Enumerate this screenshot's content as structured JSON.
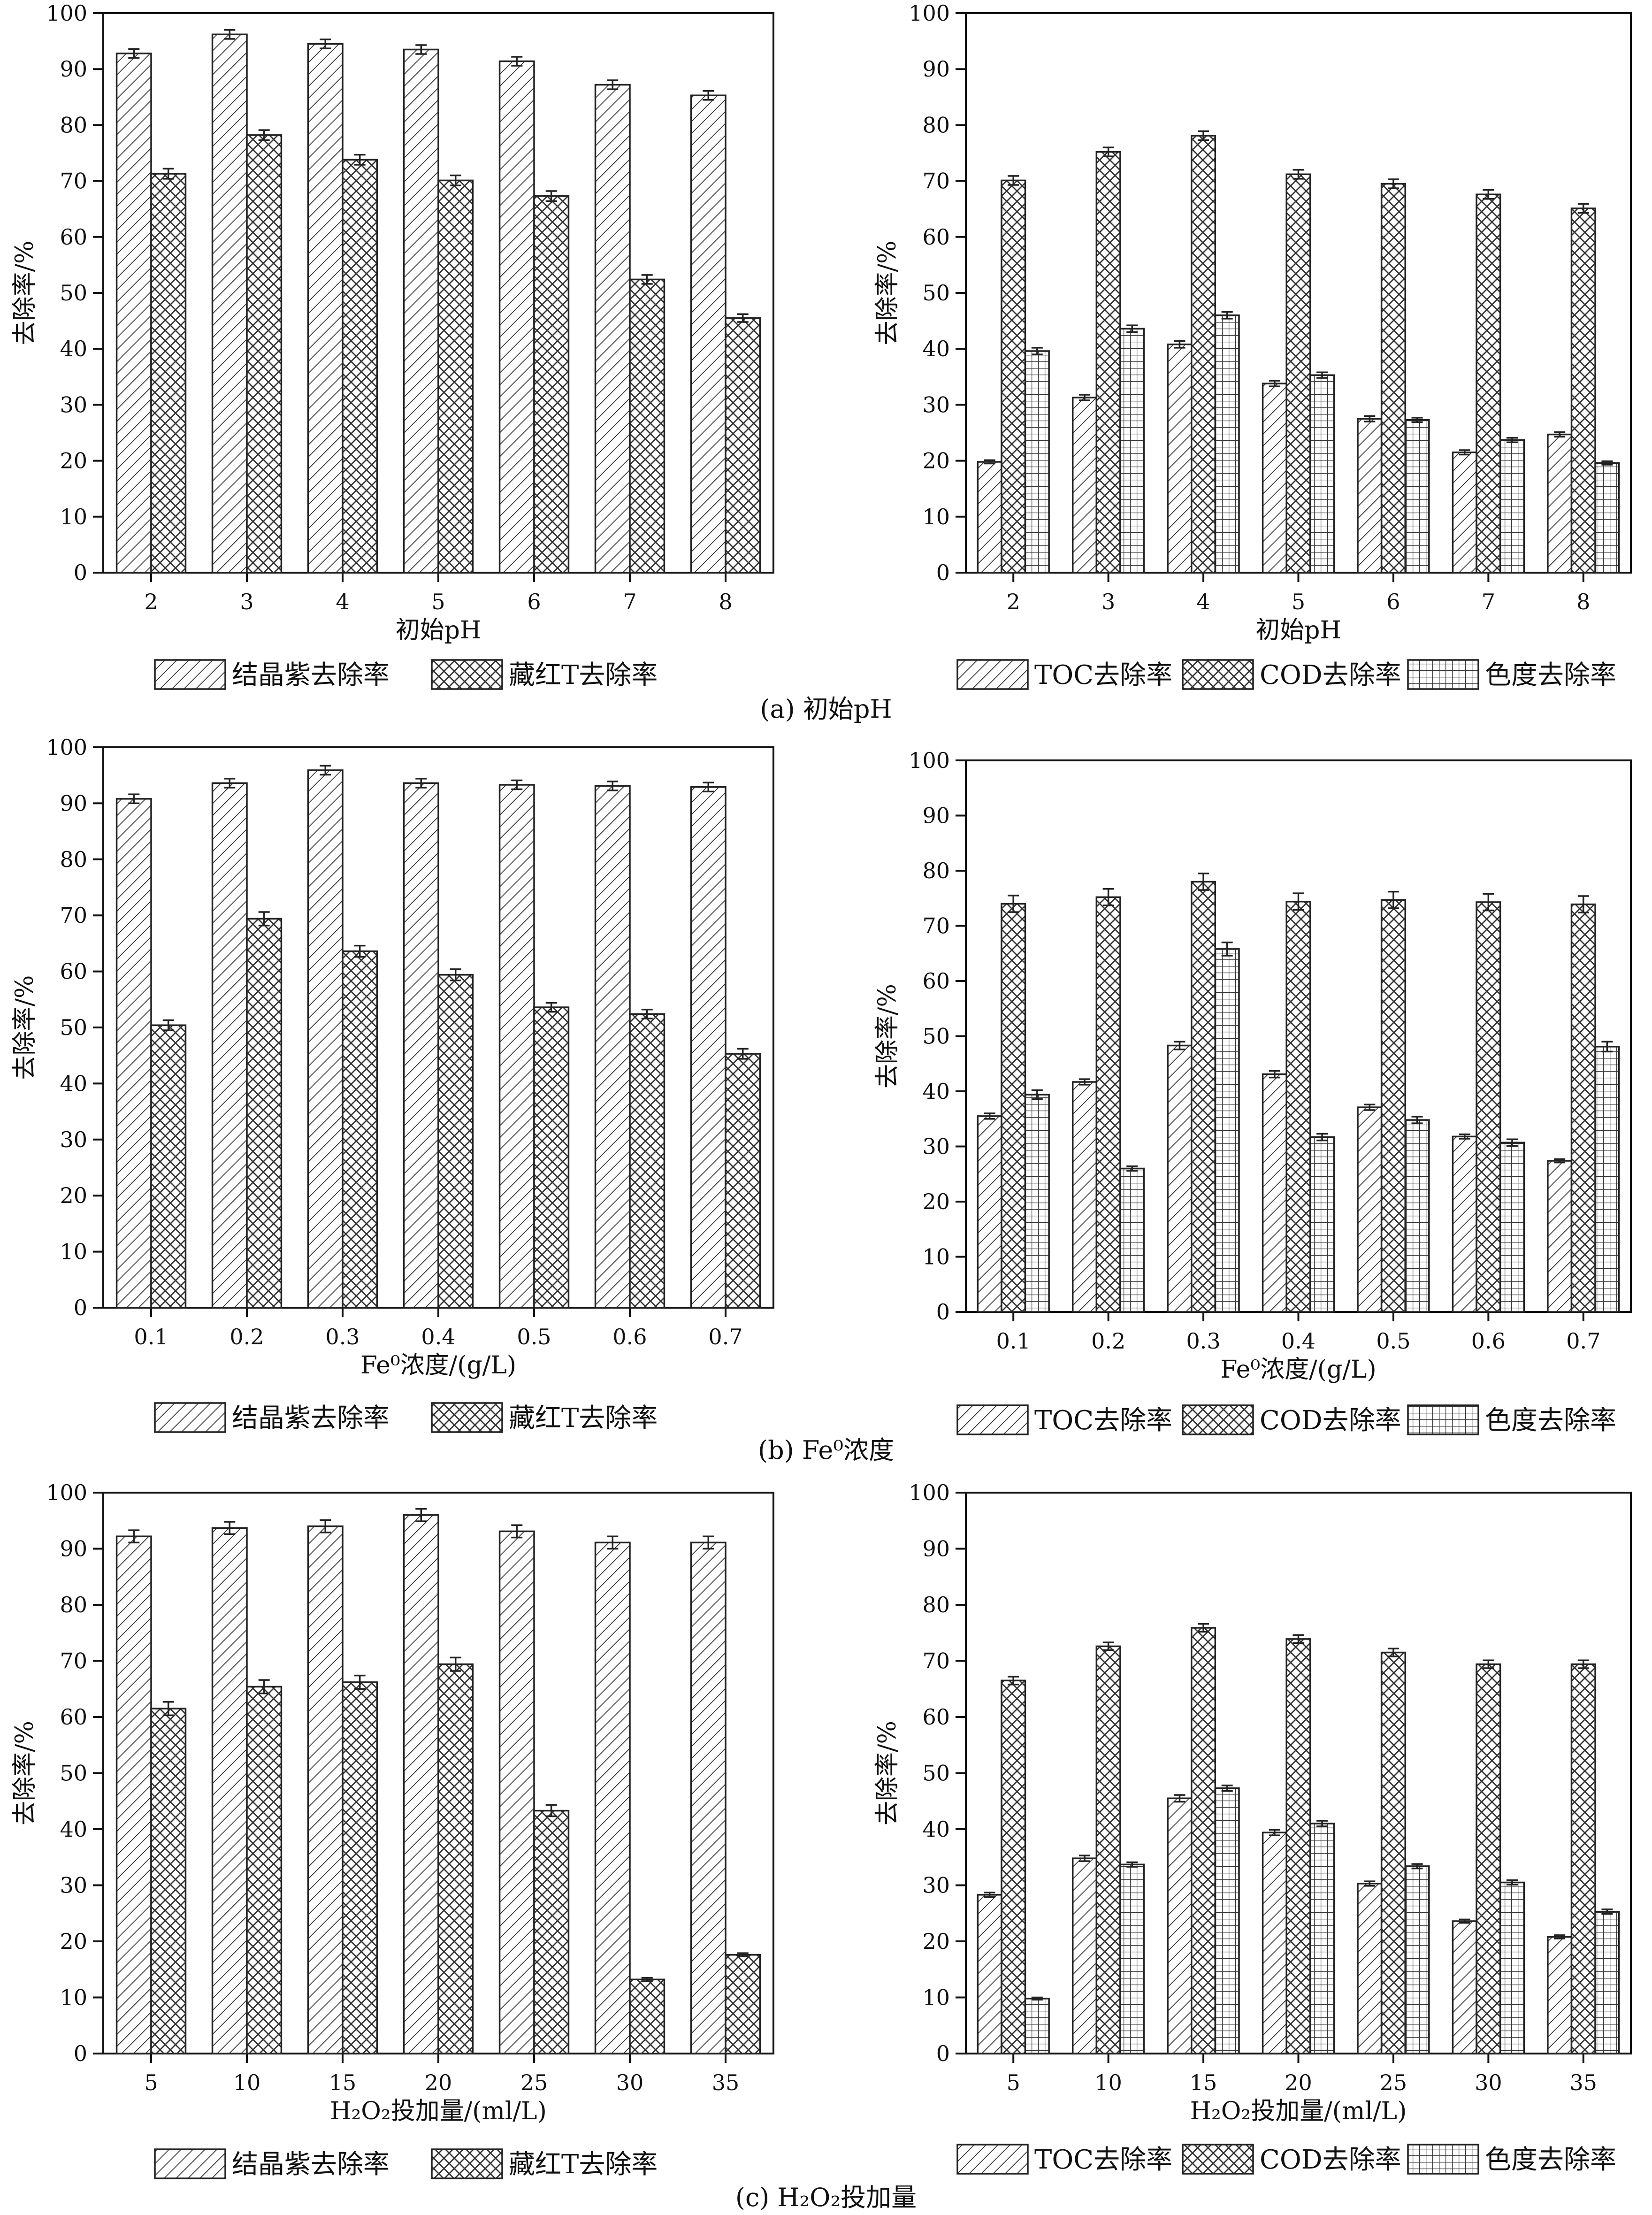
{
  "figure": {
    "captions": [
      {
        "id": "a",
        "text": "(a) 初始pH"
      },
      {
        "id": "b",
        "text": "(b) Fe⁰浓度"
      },
      {
        "id": "c",
        "text": "(c) H₂O₂投加量"
      }
    ]
  },
  "chart_data": [
    {
      "id": "a-left",
      "type": "bar",
      "categories": [
        "2",
        "3",
        "4",
        "5",
        "6",
        "7",
        "8"
      ],
      "xlabel": "初始pH",
      "ylabel": "去除率/%",
      "ylim": [
        0,
        100
      ],
      "yticks": [
        0,
        10,
        20,
        30,
        40,
        50,
        60,
        70,
        80,
        90,
        100
      ],
      "series": [
        {
          "name": "结晶紫去除率",
          "pattern": "diag",
          "values": [
            92.8,
            96.2,
            94.5,
            93.5,
            91.4,
            87.2,
            85.3
          ],
          "errors": [
            0.8,
            0.8,
            0.8,
            0.8,
            0.8,
            0.8,
            0.8
          ]
        },
        {
          "name": "藏红T去除率",
          "pattern": "cross",
          "values": [
            71.3,
            78.2,
            73.8,
            70.1,
            67.3,
            52.4,
            45.5
          ],
          "errors": [
            0.9,
            0.9,
            0.9,
            0.9,
            0.9,
            0.8,
            0.7
          ]
        }
      ]
    },
    {
      "id": "a-right",
      "type": "bar",
      "categories": [
        "2",
        "3",
        "4",
        "5",
        "6",
        "7",
        "8"
      ],
      "xlabel": "初始pH",
      "ylabel": "去除率/%",
      "ylim": [
        0,
        100
      ],
      "yticks": [
        0,
        10,
        20,
        30,
        40,
        50,
        60,
        70,
        80,
        90,
        100
      ],
      "series": [
        {
          "name": "TOC去除率",
          "pattern": "diag",
          "values": [
            19.8,
            31.3,
            40.8,
            33.8,
            27.5,
            21.5,
            24.7
          ],
          "errors": [
            0.3,
            0.5,
            0.6,
            0.5,
            0.5,
            0.4,
            0.4
          ]
        },
        {
          "name": "COD去除率",
          "pattern": "cross",
          "values": [
            70.1,
            75.2,
            78.1,
            71.2,
            69.5,
            67.6,
            65.1
          ],
          "errors": [
            0.8,
            0.8,
            0.8,
            0.8,
            0.8,
            0.8,
            0.8
          ]
        },
        {
          "name": "色度去除率",
          "pattern": "grid",
          "values": [
            39.6,
            43.6,
            46.0,
            35.3,
            27.3,
            23.7,
            19.6
          ],
          "errors": [
            0.6,
            0.6,
            0.6,
            0.5,
            0.4,
            0.4,
            0.3
          ]
        }
      ]
    },
    {
      "id": "b-left",
      "type": "bar",
      "categories": [
        "0.1",
        "0.2",
        "0.3",
        "0.4",
        "0.5",
        "0.6",
        "0.7"
      ],
      "xlabel": "Fe⁰浓度/(g/L)",
      "ylabel": "去除率/%",
      "ylim": [
        0,
        100
      ],
      "yticks": [
        0,
        10,
        20,
        30,
        40,
        50,
        60,
        70,
        80,
        90,
        100
      ],
      "series": [
        {
          "name": "结晶紫去除率",
          "pattern": "diag",
          "values": [
            90.8,
            93.6,
            95.9,
            93.6,
            93.3,
            93.1,
            92.9
          ],
          "errors": [
            0.8,
            0.8,
            0.8,
            0.8,
            0.8,
            0.8,
            0.8
          ]
        },
        {
          "name": "藏红T去除率",
          "pattern": "cross",
          "values": [
            50.4,
            69.4,
            63.6,
            59.4,
            53.6,
            52.4,
            45.3
          ],
          "errors": [
            0.9,
            1.2,
            1.0,
            1.0,
            0.8,
            0.8,
            0.9
          ]
        }
      ]
    },
    {
      "id": "b-right",
      "type": "bar",
      "categories": [
        "0.1",
        "0.2",
        "0.3",
        "0.4",
        "0.5",
        "0.6",
        "0.7"
      ],
      "xlabel": "Fe⁰浓度/(g/L)",
      "ylabel": "去除率/%",
      "ylim": [
        0,
        100
      ],
      "yticks": [
        0,
        10,
        20,
        30,
        40,
        50,
        60,
        70,
        80,
        90,
        100
      ],
      "series": [
        {
          "name": "TOC去除率",
          "pattern": "diag",
          "values": [
            35.5,
            41.7,
            48.3,
            43.1,
            37.1,
            31.8,
            27.4
          ],
          "errors": [
            0.5,
            0.5,
            0.7,
            0.6,
            0.5,
            0.4,
            0.3
          ]
        },
        {
          "name": "COD去除率",
          "pattern": "cross",
          "values": [
            74.0,
            75.2,
            78.0,
            74.4,
            74.7,
            74.3,
            73.9
          ],
          "errors": [
            1.5,
            1.5,
            1.5,
            1.5,
            1.5,
            1.5,
            1.5
          ]
        },
        {
          "name": "色度去除率",
          "pattern": "grid",
          "values": [
            39.4,
            26.0,
            65.8,
            31.7,
            34.8,
            30.7,
            48.1
          ],
          "errors": [
            0.8,
            0.4,
            1.2,
            0.6,
            0.6,
            0.6,
            0.9
          ]
        }
      ]
    },
    {
      "id": "c-left",
      "type": "bar",
      "categories": [
        "5",
        "10",
        "15",
        "20",
        "25",
        "30",
        "35"
      ],
      "xlabel": "H₂O₂投加量/(ml/L)",
      "ylabel": "去除率/%",
      "ylim": [
        0,
        100
      ],
      "yticks": [
        0,
        10,
        20,
        30,
        40,
        50,
        60,
        70,
        80,
        90,
        100
      ],
      "series": [
        {
          "name": "结晶紫去除率",
          "pattern": "diag",
          "values": [
            92.2,
            93.7,
            94.0,
            96.0,
            93.1,
            91.1,
            91.1
          ],
          "errors": [
            1.1,
            1.1,
            1.1,
            1.1,
            1.1,
            1.1,
            1.1
          ]
        },
        {
          "name": "藏红T去除率",
          "pattern": "cross",
          "values": [
            61.5,
            65.4,
            66.2,
            69.4,
            43.3,
            13.2,
            17.6
          ],
          "errors": [
            1.2,
            1.2,
            1.2,
            1.2,
            1.0,
            0.3,
            0.3
          ]
        }
      ]
    },
    {
      "id": "c-right",
      "type": "bar",
      "categories": [
        "5",
        "10",
        "15",
        "20",
        "25",
        "30",
        "35"
      ],
      "xlabel": "H₂O₂投加量/(ml/L)",
      "ylabel": "去除率/%",
      "ylim": [
        0,
        100
      ],
      "yticks": [
        0,
        10,
        20,
        30,
        40,
        50,
        60,
        70,
        80,
        90,
        100
      ],
      "series": [
        {
          "name": "TOC去除率",
          "pattern": "diag",
          "values": [
            28.3,
            34.8,
            45.5,
            39.4,
            30.3,
            23.6,
            20.8
          ],
          "errors": [
            0.4,
            0.5,
            0.6,
            0.5,
            0.4,
            0.3,
            0.3
          ]
        },
        {
          "name": "COD去除率",
          "pattern": "cross",
          "values": [
            66.5,
            72.6,
            75.9,
            73.9,
            71.5,
            69.4,
            69.4
          ],
          "errors": [
            0.7,
            0.7,
            0.7,
            0.7,
            0.7,
            0.7,
            0.7
          ]
        },
        {
          "name": "色度去除率",
          "pattern": "grid",
          "values": [
            9.8,
            33.7,
            47.3,
            41.0,
            33.4,
            30.5,
            25.3
          ],
          "errors": [
            0.2,
            0.4,
            0.5,
            0.5,
            0.4,
            0.4,
            0.4
          ]
        }
      ]
    }
  ]
}
